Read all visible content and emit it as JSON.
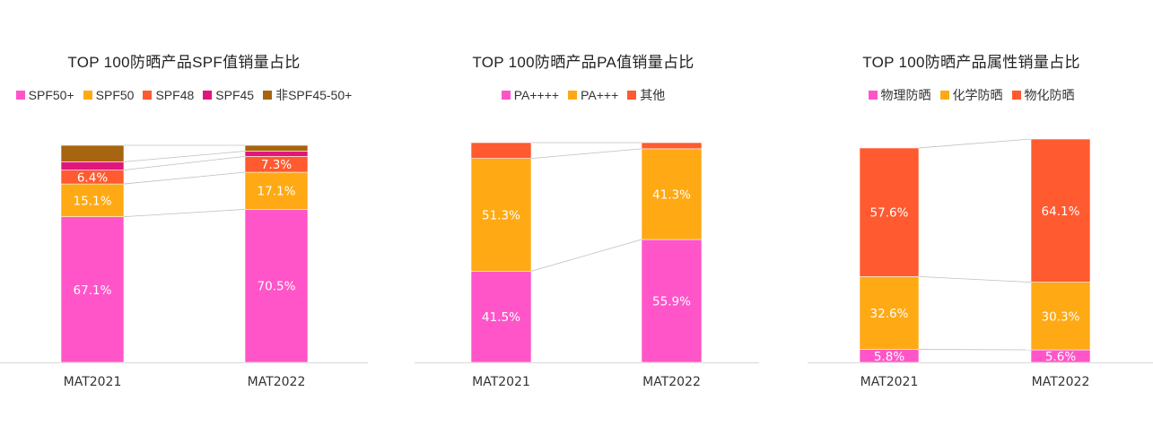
{
  "chart_data": [
    {
      "type": "bar",
      "stacked": true,
      "title": "TOP 100防晒产品SPF值销量占比",
      "categories": [
        "MAT2021",
        "MAT2022"
      ],
      "ylim": [
        0,
        100
      ],
      "legend_position": "top",
      "series": [
        {
          "name": "SPF50+",
          "color": "#FF55C8",
          "values": [
            67.1,
            70.5
          ],
          "labels": [
            "67.1%",
            "70.5%"
          ]
        },
        {
          "name": "SPF50",
          "color": "#FFA914",
          "values": [
            15.1,
            17.1
          ],
          "labels": [
            "15.1%",
            "17.1%"
          ]
        },
        {
          "name": "SPF48",
          "color": "#FF5A30",
          "values": [
            6.4,
            7.3
          ],
          "labels": [
            "6.4%",
            "7.3%"
          ]
        },
        {
          "name": "SPF45",
          "color": "#E0167D",
          "values": [
            3.8,
            2.4
          ],
          "labels": [
            "",
            ""
          ]
        },
        {
          "name": "非SPF45-50+",
          "color": "#A8650F",
          "values": [
            7.6,
            2.7
          ],
          "labels": [
            "",
            ""
          ]
        }
      ]
    },
    {
      "type": "bar",
      "stacked": true,
      "title": "TOP 100防晒产品PA值销量占比",
      "categories": [
        "MAT2021",
        "MAT2022"
      ],
      "ylim": [
        0,
        100
      ],
      "legend_position": "top",
      "series": [
        {
          "name": "PA++++",
          "color": "#FF55C8",
          "values": [
            41.5,
            55.9
          ],
          "labels": [
            "41.5%",
            "55.9%"
          ]
        },
        {
          "name": "PA+++",
          "color": "#FFA914",
          "values": [
            51.3,
            41.3
          ],
          "labels": [
            "51.3%",
            "41.3%"
          ]
        },
        {
          "name": "其他",
          "color": "#FF5A30",
          "values": [
            7.2,
            2.8
          ],
          "labels": [
            "",
            ""
          ]
        }
      ]
    },
    {
      "type": "bar",
      "stacked": true,
      "title": "TOP 100防晒产品属性销量占比",
      "categories": [
        "MAT2021",
        "MAT2022"
      ],
      "ylim": [
        0,
        100
      ],
      "legend_position": "top",
      "series": [
        {
          "name": "物理防晒",
          "color": "#FF55C8",
          "values": [
            5.8,
            5.6
          ],
          "labels": [
            "5.8%",
            "5.6%"
          ]
        },
        {
          "name": "化学防晒",
          "color": "#FFA914",
          "values": [
            32.6,
            30.3
          ],
          "labels": [
            "32.6%",
            "30.3%"
          ]
        },
        {
          "name": "物化防晒",
          "color": "#FF5A30",
          "values": [
            57.6,
            64.1
          ],
          "labels": [
            "57.6%",
            "64.1%"
          ]
        }
      ]
    }
  ]
}
